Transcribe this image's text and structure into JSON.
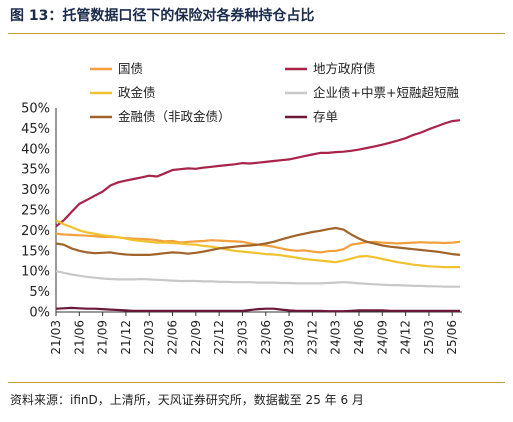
{
  "title": "图 13：托管数据口径下的保险对各券种持仓占比",
  "source": "资料来源：ifinD，上清所，天风证券研究所，数据截至 25 年 6 月",
  "chart_data": {
    "type": "line",
    "title": "",
    "xlabel": "",
    "ylabel": "",
    "ylim": [
      0,
      50
    ],
    "yticks": [
      "0%",
      "5%",
      "10%",
      "15%",
      "20%",
      "25%",
      "30%",
      "35%",
      "40%",
      "45%",
      "50%"
    ],
    "y_unit": "%",
    "grid": false,
    "legend_position": "top",
    "x_start": "2021-03",
    "x_end": "2025-06",
    "xtick_labels": [
      "21/03",
      "21/06",
      "21/09",
      "21/12",
      "22/03",
      "22/06",
      "22/09",
      "22/12",
      "23/03",
      "23/06",
      "23/09",
      "23/12",
      "24/03",
      "24/06",
      "24/09",
      "24/12",
      "25/03",
      "25/06"
    ],
    "series": [
      {
        "name": "国债",
        "color": "#F2A03D",
        "values": [
          19.2,
          19.0,
          18.9,
          18.8,
          18.7,
          18.6,
          18.4,
          18.4,
          18.3,
          18.1,
          18.0,
          17.9,
          17.8,
          17.6,
          17.3,
          17.4,
          17.0,
          17.2,
          17.3,
          17.4,
          17.6,
          17.5,
          17.4,
          17.3,
          17.2,
          16.8,
          16.5,
          16.3,
          16.0,
          15.6,
          15.2,
          15.0,
          15.1,
          14.8,
          14.6,
          14.9,
          15.0,
          15.4,
          16.5,
          16.8,
          17.1,
          17.2,
          17.0,
          16.9,
          16.8,
          16.9,
          17.0,
          17.1,
          17.0,
          17.0,
          16.9,
          17.0,
          17.2
        ]
      },
      {
        "name": "地方政府债",
        "color": "#A8234A",
        "values": [
          21.0,
          22.5,
          24.5,
          26.5,
          27.5,
          28.5,
          29.5,
          31.0,
          31.8,
          32.2,
          32.6,
          33.0,
          33.4,
          33.2,
          34.0,
          34.8,
          35.0,
          35.2,
          35.1,
          35.4,
          35.6,
          35.8,
          36.0,
          36.2,
          36.5,
          36.4,
          36.6,
          36.8,
          37.0,
          37.2,
          37.4,
          37.8,
          38.2,
          38.6,
          39.0,
          39.0,
          39.2,
          39.3,
          39.5,
          39.8,
          40.2,
          40.6,
          41.0,
          41.5,
          42.0,
          42.6,
          43.4,
          44.0,
          44.8,
          45.5,
          46.2,
          46.8,
          47.0
        ]
      },
      {
        "name": "政金债",
        "color": "#F2C12E",
        "values": [
          22.5,
          21.5,
          20.8,
          20.0,
          19.5,
          19.2,
          18.8,
          18.6,
          18.3,
          18.0,
          17.6,
          17.4,
          17.2,
          17.0,
          17.0,
          16.9,
          16.8,
          16.6,
          16.5,
          16.2,
          16.0,
          15.7,
          15.3,
          15.0,
          14.8,
          14.6,
          14.4,
          14.2,
          14.1,
          13.9,
          13.6,
          13.3,
          13.0,
          12.8,
          12.6,
          12.4,
          12.2,
          12.6,
          13.1,
          13.6,
          13.7,
          13.4,
          13.0,
          12.6,
          12.2,
          11.9,
          11.6,
          11.4,
          11.2,
          11.1,
          11.0,
          11.0,
          11.0
        ]
      },
      {
        "name": "企业债+中票+短融超短融",
        "color": "#C8C8C8",
        "values": [
          10.0,
          9.6,
          9.2,
          8.9,
          8.6,
          8.4,
          8.2,
          8.1,
          8.0,
          8.0,
          8.0,
          8.1,
          8.0,
          7.9,
          7.8,
          7.7,
          7.6,
          7.6,
          7.6,
          7.5,
          7.5,
          7.4,
          7.4,
          7.3,
          7.3,
          7.3,
          7.2,
          7.2,
          7.2,
          7.1,
          7.1,
          7.0,
          7.0,
          7.0,
          7.0,
          7.1,
          7.2,
          7.3,
          7.2,
          7.0,
          6.9,
          6.8,
          6.7,
          6.6,
          6.6,
          6.5,
          6.4,
          6.4,
          6.3,
          6.3,
          6.2,
          6.2,
          6.2
        ]
      },
      {
        "name": "金融债（非政金债）",
        "color": "#A0642A",
        "values": [
          16.8,
          16.5,
          15.6,
          15.0,
          14.6,
          14.4,
          14.5,
          14.6,
          14.3,
          14.1,
          14.0,
          14.0,
          14.0,
          14.2,
          14.4,
          14.6,
          14.5,
          14.3,
          14.5,
          14.8,
          15.2,
          15.6,
          15.8,
          16.0,
          16.2,
          16.3,
          16.5,
          16.8,
          17.2,
          17.8,
          18.3,
          18.8,
          19.2,
          19.6,
          19.9,
          20.3,
          20.6,
          20.2,
          19.0,
          18.0,
          17.2,
          16.8,
          16.3,
          16.0,
          15.8,
          15.6,
          15.4,
          15.2,
          15.0,
          14.8,
          14.5,
          14.2,
          14.0
        ]
      },
      {
        "name": "存单",
        "color": "#6B1838",
        "values": [
          0.8,
          0.9,
          1.0,
          0.9,
          0.8,
          0.8,
          0.7,
          0.6,
          0.5,
          0.4,
          0.3,
          0.3,
          0.3,
          0.3,
          0.3,
          0.3,
          0.3,
          0.3,
          0.3,
          0.3,
          0.3,
          0.3,
          0.3,
          0.3,
          0.3,
          0.5,
          0.7,
          0.8,
          0.8,
          0.6,
          0.4,
          0.3,
          0.3,
          0.3,
          0.3,
          0.2,
          0.2,
          0.2,
          0.3,
          0.4,
          0.4,
          0.4,
          0.4,
          0.3,
          0.3,
          0.3,
          0.3,
          0.3,
          0.3,
          0.3,
          0.3,
          0.3,
          0.3
        ]
      }
    ]
  }
}
